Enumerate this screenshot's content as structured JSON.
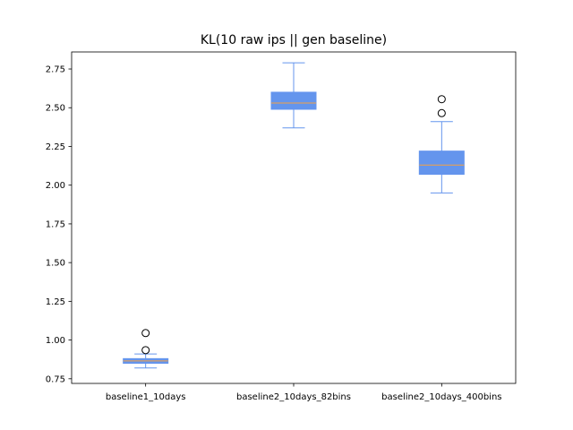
{
  "chart_data": {
    "type": "box",
    "title": "KL(10 raw ips || gen baseline)",
    "xlabel": "",
    "ylabel": "",
    "ylim": [
      0.72,
      2.86
    ],
    "yticks": [
      0.75,
      1.0,
      1.25,
      1.5,
      1.75,
      2.0,
      2.25,
      2.5,
      2.75
    ],
    "ytick_labels": [
      "0.75",
      "1.00",
      "1.25",
      "1.50",
      "1.75",
      "2.00",
      "2.25",
      "2.50",
      "2.75"
    ],
    "grid": false,
    "categories": [
      "baseline1_10days",
      "baseline2_10days_82bins",
      "baseline2_10days_400bins"
    ],
    "boxes": [
      {
        "name": "baseline1_10days",
        "whisker_low": 0.82,
        "q1": 0.85,
        "median": 0.865,
        "q3": 0.88,
        "whisker_high": 0.91,
        "outliers": [
          0.935,
          1.045
        ]
      },
      {
        "name": "baseline2_10days_82bins",
        "whisker_low": 2.37,
        "q1": 2.49,
        "median": 2.53,
        "q3": 2.6,
        "whisker_high": 2.79,
        "outliers": []
      },
      {
        "name": "baseline2_10days_400bins",
        "whisker_low": 1.95,
        "q1": 2.07,
        "median": 2.13,
        "q3": 2.22,
        "whisker_high": 2.41,
        "outliers": [
          2.465,
          2.555
        ]
      }
    ],
    "colors": {
      "box_fill": "#6495ED",
      "box_edge": "#6495ED",
      "whisker": "#6495ED",
      "median": "#F5A142",
      "outlier_edge": "#000000",
      "axes": "#000000"
    }
  }
}
